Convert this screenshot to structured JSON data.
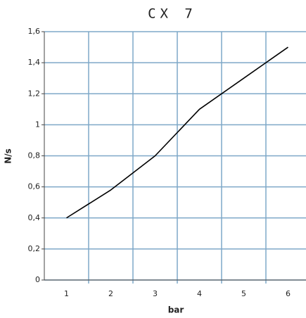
{
  "chart_data": {
    "type": "line",
    "title": "CX 7",
    "x_label": "bar",
    "y_label": "N/s",
    "x": [
      1,
      2,
      3,
      4,
      5,
      6
    ],
    "series": [
      {
        "name": "CX 7",
        "color": "#000000",
        "values": [
          0.4,
          0.58,
          0.8,
          1.1,
          1.3,
          1.5
        ]
      }
    ],
    "xlim": [
      0.5,
      6.5
    ],
    "xticks": [
      1,
      2,
      3,
      4,
      5,
      6
    ],
    "ylim": [
      0,
      1.6
    ],
    "yticks": [
      0,
      {
        "value": 0.2,
        "label": "0,2"
      },
      {
        "value": 0.4,
        "label": "0,4"
      },
      {
        "value": 0.6,
        "label": "0,6"
      },
      {
        "value": 0.8,
        "label": "0,8"
      },
      1,
      {
        "value": 1.2,
        "label": "1,2"
      },
      {
        "value": 1.4,
        "label": "1,4"
      },
      {
        "value": 1.6,
        "label": "1,6"
      }
    ],
    "grid": true,
    "grid_color": "#7fa8c8"
  }
}
